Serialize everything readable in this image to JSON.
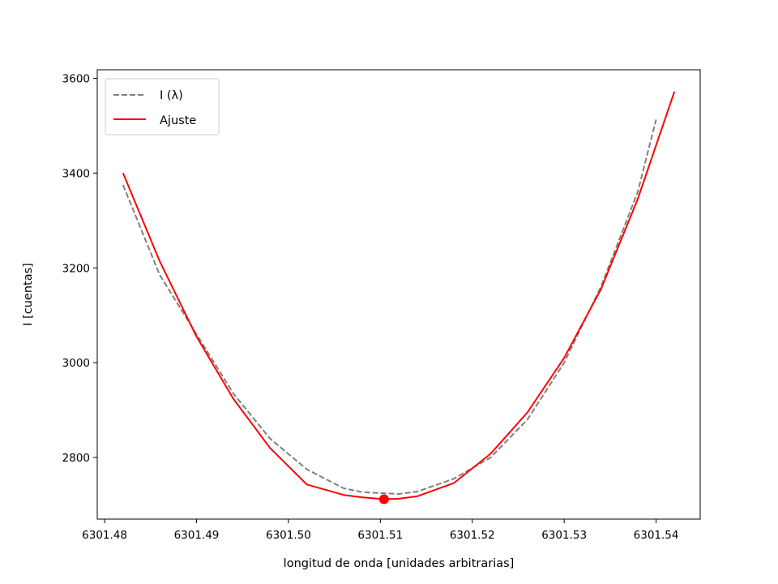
{
  "chart_data": {
    "type": "line",
    "title": "",
    "xlabel": "longitud de onda [unidades arbitrarias]",
    "ylabel": "I [cuentas]",
    "xlim": [
      6301.4792,
      6301.5448
    ],
    "ylim": [
      2670,
      3618
    ],
    "grid": false,
    "legend_position": "top-left",
    "x_ticks": [
      6301.48,
      6301.49,
      6301.5,
      6301.51,
      6301.52,
      6301.53,
      6301.54
    ],
    "x_tick_labels": [
      "6301.48",
      "6301.49",
      "6301.50",
      "6301.51",
      "6301.52",
      "6301.53",
      "6301.54"
    ],
    "y_ticks": [
      2800,
      3000,
      3200,
      3400,
      3600
    ],
    "y_tick_labels": [
      "2800",
      "3000",
      "3200",
      "3400",
      "3600"
    ],
    "series": [
      {
        "name": "I (λ)",
        "color": "#808080",
        "style": "dashed",
        "x": [
          6301.482,
          6301.486,
          6301.49,
          6301.494,
          6301.498,
          6301.502,
          6301.506,
          6301.508,
          6301.51,
          6301.512,
          6301.514,
          6301.518,
          6301.522,
          6301.526,
          6301.53,
          6301.534,
          6301.538,
          6301.54
        ],
        "y": [
          3375,
          3185,
          3060,
          2935,
          2840,
          2775,
          2735,
          2727,
          2725,
          2723,
          2728,
          2755,
          2800,
          2880,
          3000,
          3160,
          3360,
          3513
        ]
      },
      {
        "name": "Ajuste",
        "color": "#ff0000",
        "style": "solid",
        "x": [
          6301.482,
          6301.486,
          6301.49,
          6301.494,
          6301.498,
          6301.502,
          6301.506,
          6301.508,
          6301.5104,
          6301.512,
          6301.514,
          6301.518,
          6301.522,
          6301.526,
          6301.53,
          6301.534,
          6301.538,
          6301.542
        ],
        "y": [
          3400,
          3214,
          3055,
          2924,
          2820,
          2743,
          2721,
          2716,
          2712,
          2713,
          2718,
          2746,
          2808,
          2895,
          3010,
          3155,
          3345,
          3572
        ]
      }
    ],
    "marker": {
      "x": 6301.5104,
      "y": 2712,
      "color": "#ff0000"
    }
  }
}
